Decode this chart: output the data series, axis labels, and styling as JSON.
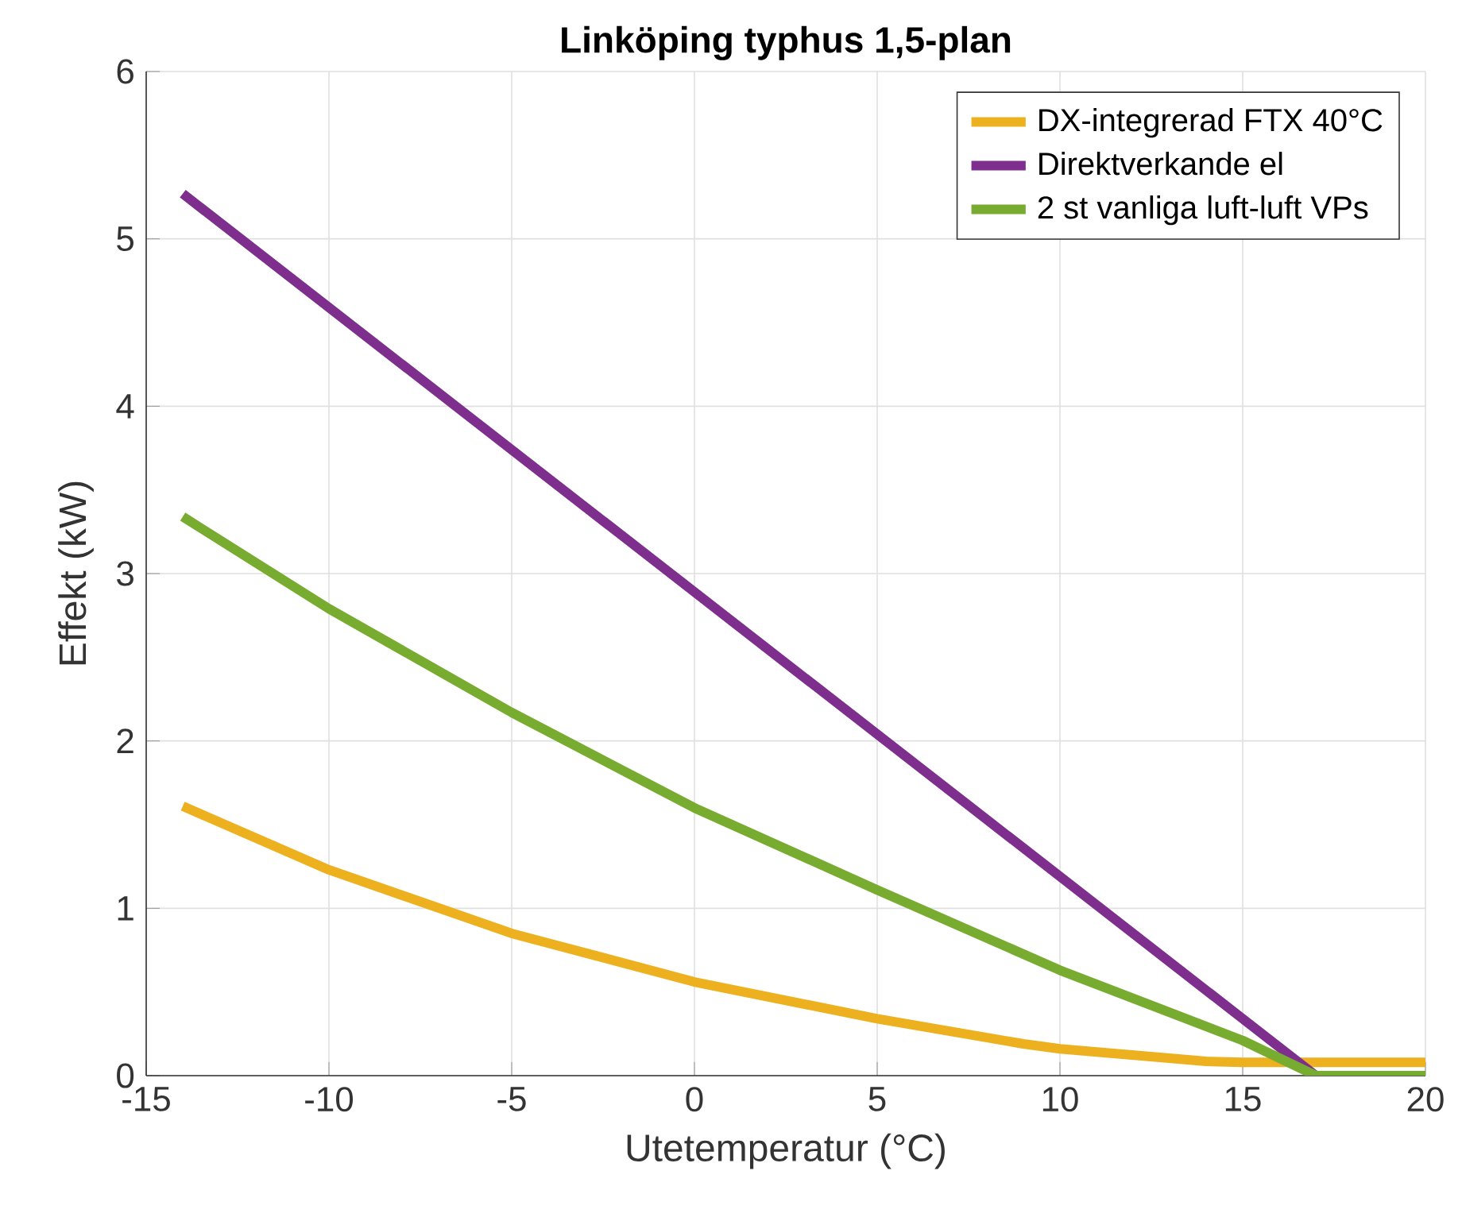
{
  "chart_data": {
    "type": "line",
    "title": "Linköping typhus 1,5-plan",
    "xlabel": "Utetemperatur (°C)",
    "ylabel": "Effekt (kW)",
    "x": [
      -14,
      -10,
      -5,
      0,
      5,
      9,
      10,
      14,
      15,
      17,
      20
    ],
    "series": [
      {
        "name": "DX-integrerad FTX 40°C",
        "color": "#edb120",
        "values": [
          1.61,
          1.23,
          0.85,
          0.56,
          0.34,
          0.19,
          0.16,
          0.085,
          0.08,
          0.08,
          0.08
        ]
      },
      {
        "name": "Direktverkande el",
        "color": "#7e2f8e",
        "values": [
          5.27,
          null,
          null,
          null,
          null,
          null,
          null,
          null,
          null,
          0,
          0
        ]
      },
      {
        "name": "2 st vanliga luft-luft VPs",
        "color": "#77ac30",
        "values": [
          3.34,
          2.79,
          2.17,
          1.6,
          1.11,
          null,
          0.63,
          null,
          0.21,
          0,
          0
        ]
      }
    ],
    "xlim": [
      -15,
      20
    ],
    "xticks": [
      -15,
      -10,
      -5,
      0,
      5,
      10,
      15,
      20
    ],
    "ylim": [
      0,
      6
    ],
    "yticks": [
      0,
      1,
      2,
      3,
      4,
      5,
      6
    ],
    "grid": true,
    "legend": "top right",
    "marker": "none",
    "line_style": "solid"
  }
}
